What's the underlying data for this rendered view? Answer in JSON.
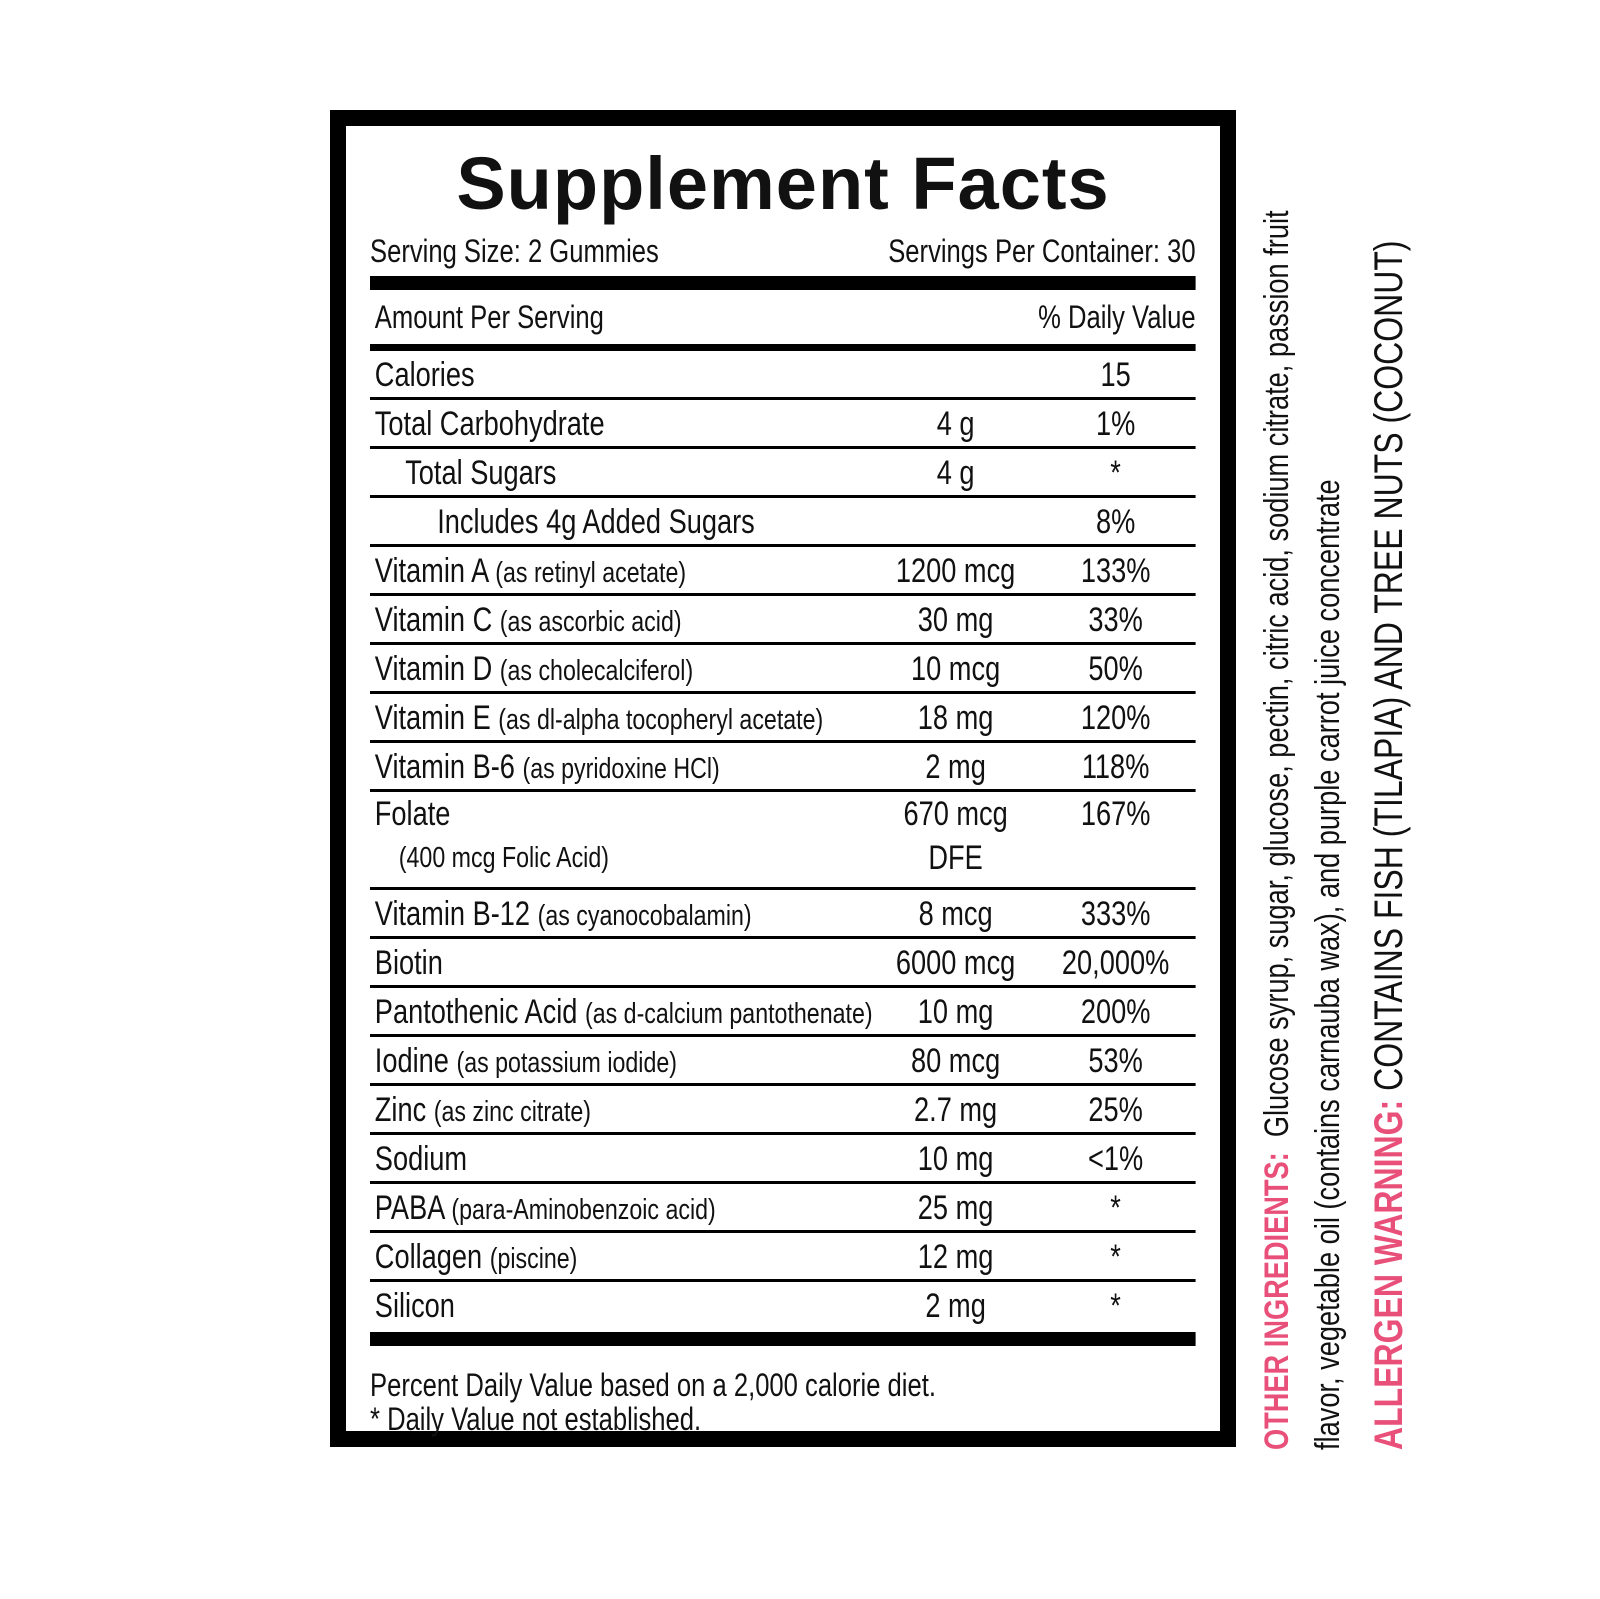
{
  "title": "Supplement Facts",
  "serving_size": "Serving Size: 2 Gummies",
  "servings_per_container": "Servings Per Container: 30",
  "header": {
    "amount": "Amount Per Serving",
    "dv": "% Daily Value"
  },
  "rows": [
    {
      "name": "Calories",
      "detail": "",
      "amount": "",
      "dv": "15"
    },
    {
      "name": "Total Carbohydrate",
      "detail": "",
      "amount": "4 g",
      "dv": "1%"
    },
    {
      "name": "Total Sugars",
      "detail": "",
      "amount": "4 g",
      "dv": "*"
    },
    {
      "name": "Includes 4g Added Sugars",
      "detail": "",
      "amount": "",
      "dv": "8%"
    },
    {
      "name": "Vitamin A",
      "detail": "(as retinyl acetate)",
      "amount": "1200 mcg",
      "dv": "133%"
    },
    {
      "name": "Vitamin C",
      "detail": "(as ascorbic acid)",
      "amount": "30 mg",
      "dv": "33%"
    },
    {
      "name": "Vitamin D",
      "detail": "(as cholecalciferol)",
      "amount": "10 mcg",
      "dv": "50%"
    },
    {
      "name": "Vitamin E",
      "detail": "(as dl-alpha tocopheryl acetate)",
      "amount": "18 mg",
      "dv": "120%"
    },
    {
      "name": "Vitamin B-6",
      "detail": "(as pyridoxine HCl)",
      "amount": "2 mg",
      "dv": "118%"
    },
    {
      "name": "Folate",
      "detail": "(400 mcg Folic Acid)",
      "amount": "670 mcg",
      "amount2": "DFE",
      "dv": "167%"
    },
    {
      "name": "Vitamin B-12",
      "detail": "(as cyanocobalamin)",
      "amount": "8 mcg",
      "dv": "333%"
    },
    {
      "name": "Biotin",
      "detail": "",
      "amount": "6000 mcg",
      "dv": "20,000%"
    },
    {
      "name": "Pantothenic Acid",
      "detail": "(as d-calcium pantothenate)",
      "amount": "10 mg",
      "dv": "200%"
    },
    {
      "name": "Iodine",
      "detail": "(as potassium iodide)",
      "amount": "80 mcg",
      "dv": "53%"
    },
    {
      "name": "Zinc",
      "detail": "(as zinc citrate)",
      "amount": "2.7 mg",
      "dv": "25%"
    },
    {
      "name": "Sodium",
      "detail": "",
      "amount": "10 mg",
      "dv": "<1%"
    },
    {
      "name": "PABA",
      "detail": "(para-Aminobenzoic acid)",
      "amount": "25 mg",
      "dv": "*"
    },
    {
      "name": "Collagen",
      "detail": "(piscine)",
      "amount": "12 mg",
      "dv": "*"
    },
    {
      "name": "Silicon",
      "detail": "",
      "amount": "2 mg",
      "dv": "*"
    }
  ],
  "footnotes": [
    "Percent Daily Value based on a 2,000 calorie diet.",
    "* Daily Value not established."
  ],
  "other_ingredients": {
    "label": "OTHER INGREDIENTS:",
    "line1": "Glucose syrup, sugar, glucose, pectin, citric acid, sodium citrate, passion fruit",
    "line2": "flavor, vegetable oil (contains carnauba wax), and purple carrot juice concentrate"
  },
  "allergen": {
    "label": "ALLERGEN WARNING:",
    "text": "CONTAINS FISH (TILAPIA) AND TREE NUTS (COCONUT)"
  },
  "colors": {
    "accent": "#e8507a",
    "border": "#000000"
  }
}
